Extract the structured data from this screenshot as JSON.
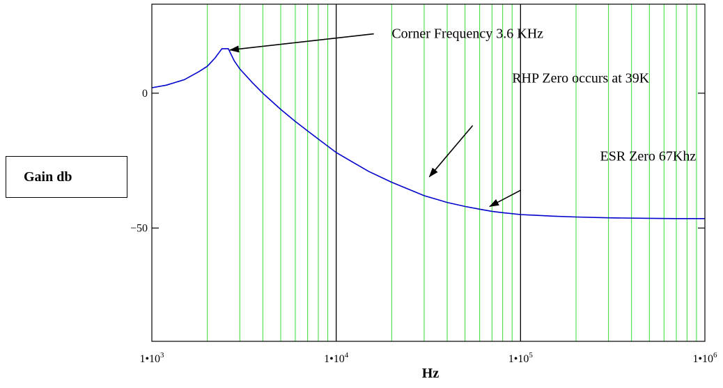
{
  "chart_data": {
    "type": "line",
    "title": "",
    "xlabel": "Hz",
    "ylabel": "Gain db",
    "x_scale": "log",
    "xlim": [
      1000,
      1000000
    ],
    "ylim": [
      -92,
      33
    ],
    "x_ticks": [
      {
        "mantissa": "1",
        "sep": "•",
        "base": "10",
        "exp": "3"
      },
      {
        "mantissa": "1",
        "sep": "•",
        "base": "10",
        "exp": "4"
      },
      {
        "mantissa": "1",
        "sep": "•",
        "base": "10",
        "exp": "5"
      },
      {
        "mantissa": "1",
        "sep": "•",
        "base": "10",
        "exp": "6"
      }
    ],
    "y_ticks": [
      {
        "value": 0,
        "label": "0"
      },
      {
        "value": -50,
        "label": "−50"
      }
    ],
    "grid": {
      "minor_color": "#33dd33",
      "major_color": "#000000",
      "x_minor": true,
      "x_major": true
    },
    "series": [
      {
        "color": "#0000cc",
        "x": [
          1000,
          1200,
          1500,
          1800,
          2000,
          2200,
          2400,
          2600,
          2800,
          3000,
          3500,
          4000,
          5000,
          6000,
          7000,
          8000,
          10000,
          15000,
          20000,
          30000,
          40000,
          50000,
          60000,
          70000,
          80000,
          100000,
          150000,
          200000,
          300000,
          500000,
          700000,
          1000000
        ],
        "y": [
          2,
          3,
          5,
          8,
          10,
          13,
          16.5,
          16.5,
          12,
          9,
          4,
          0,
          -6,
          -10.5,
          -14,
          -17,
          -22,
          -29,
          -33,
          -38,
          -40.5,
          -42,
          -43,
          -43.8,
          -44.3,
          -45,
          -45.6,
          -45.9,
          -46.2,
          -46.4,
          -46.5,
          -46.5
        ]
      }
    ],
    "annotations": [
      {
        "text": "Corner Frequency 3.6 KHz",
        "x": 20000,
        "y": 20.5,
        "arrow_from": [
          16000,
          22
        ],
        "arrow_to": [
          2650,
          16
        ]
      },
      {
        "text": "RHP Zero occurs at 39K",
        "x": 90000,
        "y": 4,
        "arrow_from": [
          55000,
          -12
        ],
        "arrow_to": [
          32000,
          -31
        ]
      },
      {
        "text": "ESR Zero 67Khz",
        "x": 270000,
        "y": -25,
        "arrow_from": [
          100000,
          -36
        ],
        "arrow_to": [
          68000,
          -42
        ]
      }
    ]
  }
}
